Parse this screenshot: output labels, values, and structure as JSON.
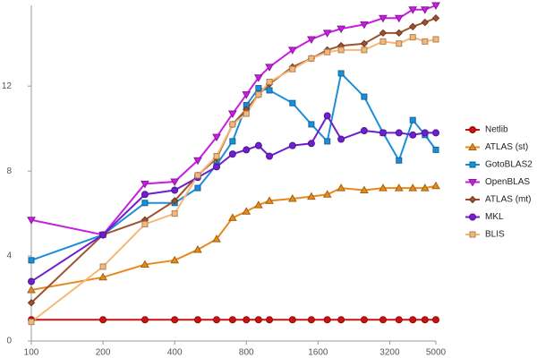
{
  "chart_data": {
    "type": "line",
    "xscale": "log",
    "x": [
      100,
      200,
      300,
      400,
      500,
      600,
      700,
      800,
      900,
      1000,
      1250,
      1500,
      1750,
      2000,
      2500,
      3000,
      3500,
      4000,
      4500,
      5000
    ],
    "xlim": [
      100,
      5000
    ],
    "xticks": [
      100,
      200,
      400,
      800,
      1600,
      3200,
      5000
    ],
    "ylim": [
      0,
      15.8
    ],
    "yticks": [
      0,
      4,
      8,
      12
    ],
    "grid": false,
    "legend": "right",
    "series": [
      {
        "name": "Netlib",
        "color": "#cc1111",
        "marker": "circle",
        "values": [
          1,
          1,
          1,
          1,
          1,
          1,
          1,
          1,
          1,
          1,
          1,
          1,
          1,
          1,
          1,
          1,
          1,
          1,
          1,
          1
        ]
      },
      {
        "name": "ATLAS (st)",
        "color": "#e8891c",
        "marker": "triangle",
        "values": [
          2.4,
          3.0,
          3.6,
          3.8,
          4.3,
          4.8,
          5.8,
          6.1,
          6.4,
          6.6,
          6.7,
          6.8,
          6.9,
          7.2,
          7.1,
          7.2,
          7.2,
          7.2,
          7.2,
          7.3
        ]
      },
      {
        "name": "GotoBLAS2",
        "color": "#1b8fd9",
        "marker": "square",
        "values": [
          3.8,
          5.0,
          6.5,
          6.5,
          7.2,
          8.3,
          9.4,
          11.1,
          11.9,
          11.8,
          11.2,
          10.2,
          9.4,
          12.6,
          11.5,
          9.8,
          8.5,
          10.4,
          9.7,
          9.0
        ]
      },
      {
        "name": "OpenBLAS",
        "color": "#c71ee0",
        "marker": "down-triangle",
        "values": [
          5.7,
          5.0,
          7.4,
          7.5,
          8.5,
          9.6,
          10.7,
          11.6,
          12.4,
          12.9,
          13.7,
          14.2,
          14.5,
          14.7,
          14.9,
          15.2,
          15.2,
          15.6,
          15.6,
          15.8
        ]
      },
      {
        "name": "ATLAS (mt)",
        "color": "#a0522d",
        "marker": "diamond",
        "values": [
          1.8,
          5.0,
          5.7,
          6.6,
          7.8,
          8.6,
          10.2,
          10.9,
          11.6,
          12.1,
          12.9,
          13.3,
          13.7,
          13.9,
          14.0,
          14.5,
          14.5,
          14.8,
          15.0,
          15.2
        ]
      },
      {
        "name": "MKL",
        "color": "#6e1fcf",
        "marker": "circle",
        "values": [
          2.8,
          5.0,
          6.9,
          7.1,
          7.7,
          8.2,
          8.8,
          9.0,
          9.2,
          8.7,
          9.2,
          9.3,
          10.6,
          9.5,
          9.9,
          9.8,
          9.8,
          9.7,
          9.8,
          9.8
        ]
      },
      {
        "name": "BLIS",
        "color": "#f5b87a",
        "marker": "square",
        "values": [
          0.9,
          3.5,
          5.5,
          6.0,
          7.8,
          8.7,
          10.2,
          10.7,
          11.6,
          12.2,
          12.8,
          13.3,
          13.6,
          13.7,
          13.7,
          14.1,
          14.0,
          14.3,
          14.1,
          14.2
        ]
      }
    ]
  }
}
